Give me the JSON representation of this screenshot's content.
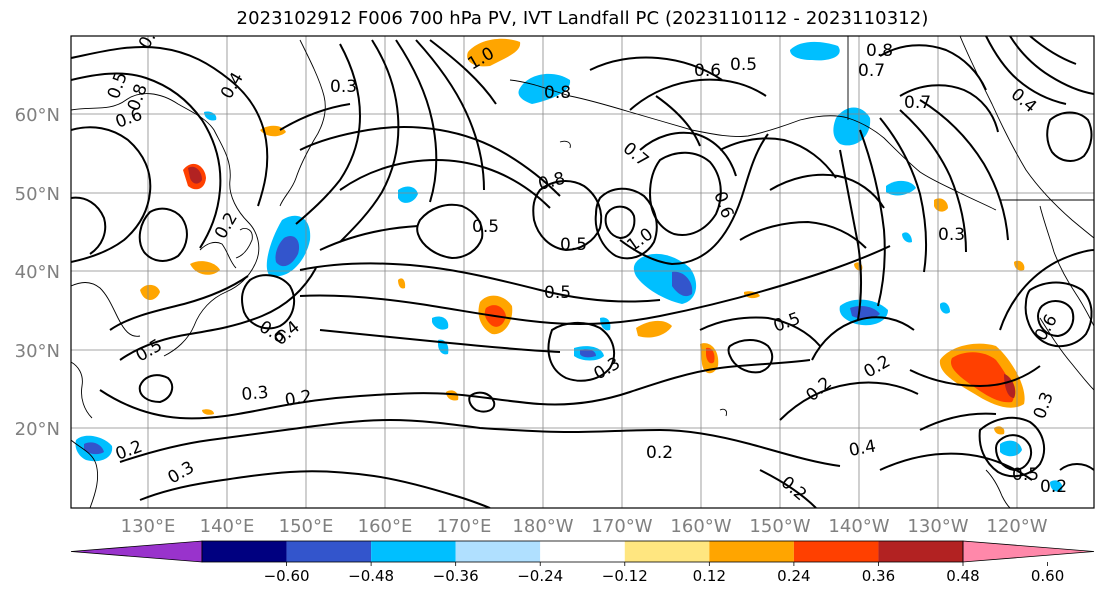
{
  "title": "2023102912 F006 700 hPa PV, IVT Landfall PC (2023110112 - 2023110312)",
  "lat_labels": [
    "60°N",
    "50°N",
    "40°N",
    "30°N",
    "20°N"
  ],
  "lon_labels": [
    "130°E",
    "140°E",
    "150°E",
    "160°E",
    "170°E",
    "180°W",
    "170°W",
    "160°W",
    "150°W",
    "140°W",
    "130°W",
    "120°W"
  ],
  "colorbar": {
    "ticks": [
      "−0.60",
      "−0.48",
      "−0.36",
      "−0.24",
      "−0.12",
      "0.12",
      "0.24",
      "0.36",
      "0.48",
      "0.60"
    ],
    "colors": [
      "#9933cc",
      "#000080",
      "#3355cc",
      "#00bfff",
      "#b0e0ff",
      "#ffffff",
      "#ffe680",
      "#ffa500",
      "#ff4000",
      "#b22222",
      "#ff88aa"
    ]
  },
  "contour_labels": [
    "0.7",
    "0.5",
    "0.6",
    "0.8",
    "0.4",
    "0.3",
    "1.0",
    "0.8",
    "0.6",
    "0.5",
    "0.7",
    "0.7",
    "0.8",
    "0.8",
    "0.5",
    "0.5",
    "1.0",
    "0.5",
    "0.7",
    "0.3",
    "0.6",
    "0.4",
    "0.5",
    "0.3",
    "0.2",
    "0.3",
    "0.2",
    "0.2",
    "0.4",
    "0.2",
    "0.2",
    "0.6",
    "0.5",
    "0.4",
    "0.3",
    "0.2",
    "0.6",
    "0.5",
    "0.3",
    "0.2",
    "0.2"
  ]
}
